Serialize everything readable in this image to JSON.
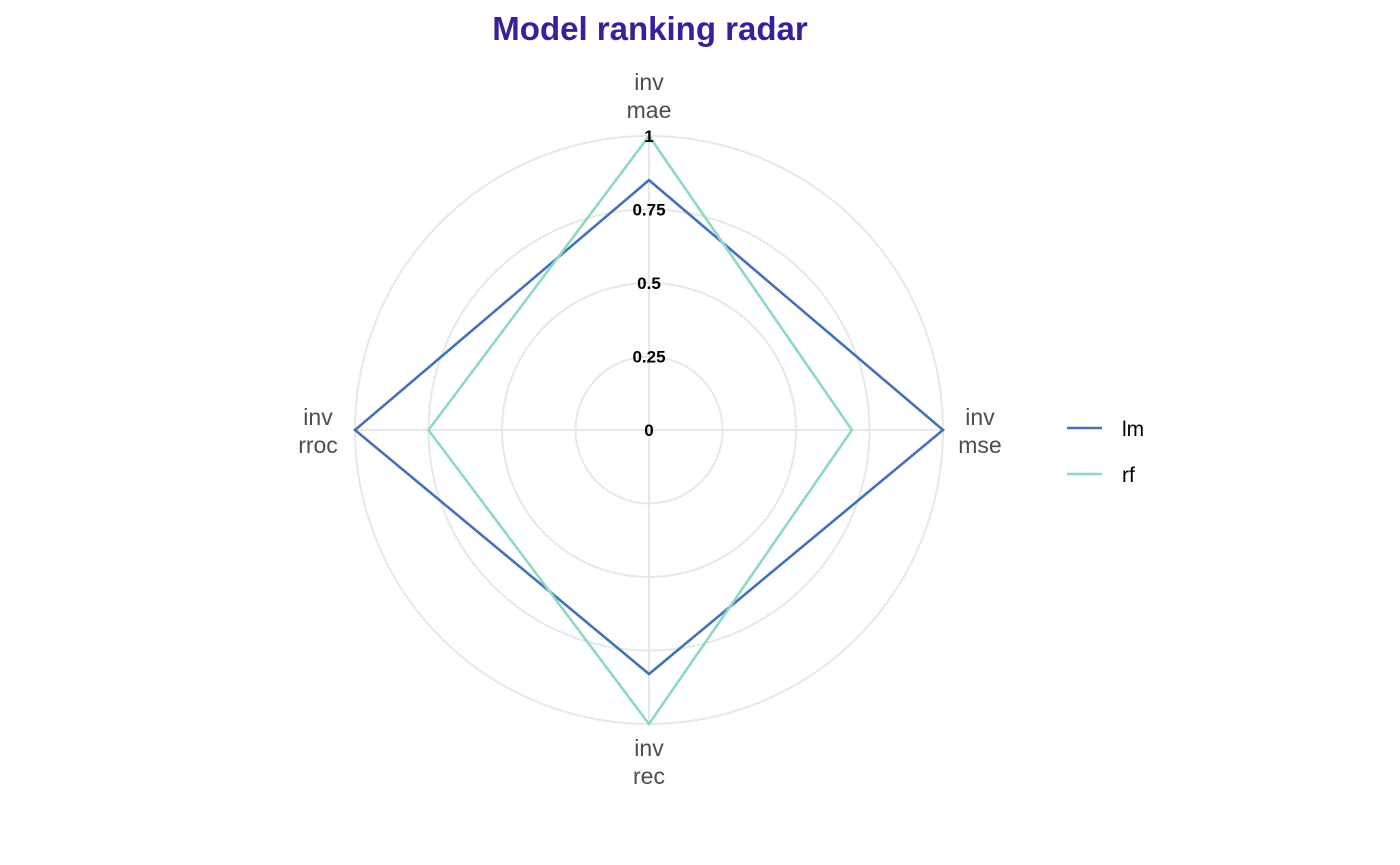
{
  "chart_data": {
    "type": "radar",
    "title": "Model ranking radar",
    "axes": [
      {
        "line1": "inv",
        "line2": "mae"
      },
      {
        "line1": "inv",
        "line2": "mse"
      },
      {
        "line1": "inv",
        "line2": "rec"
      },
      {
        "line1": "inv",
        "line2": "rroc"
      }
    ],
    "rlim": [
      0,
      1
    ],
    "ticks": [
      {
        "value": 0,
        "label": "0"
      },
      {
        "value": 0.25,
        "label": "0.25"
      },
      {
        "value": 0.5,
        "label": "0.5"
      },
      {
        "value": 0.75,
        "label": "0.75"
      },
      {
        "value": 1,
        "label": "1"
      }
    ],
    "grid": true,
    "legend_position": "right",
    "series": [
      {
        "name": "lm",
        "color": "#4472b8",
        "values": [
          0.85,
          1.0,
          0.83,
          1.0
        ]
      },
      {
        "name": "rf",
        "color": "#8ed9c3",
        "values": [
          1.0,
          0.69,
          1.0,
          0.75
        ]
      }
    ]
  },
  "colors": {
    "title": "#34229c",
    "grid": "#e8e8e8",
    "axis_label": "#4d4d4d"
  }
}
